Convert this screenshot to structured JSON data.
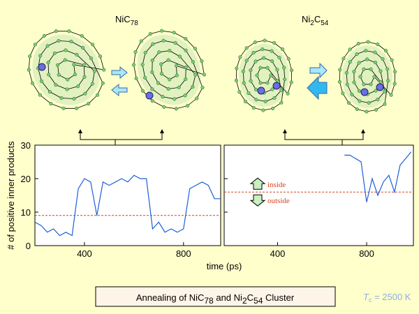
{
  "labels": [
    {
      "text": "NiC",
      "sub": "78"
    },
    {
      "text": "Ni",
      "sub": "2",
      "text2": "C",
      "sub2": "54"
    }
  ],
  "caption": [
    "Annealing of NiC",
    "78",
    " and Ni",
    "2",
    "C",
    "54",
    " Cluster"
  ],
  "temperature": {
    "symbol": "T",
    "sub": "c",
    "text": " = 2500 K"
  },
  "chart_data": [
    {
      "type": "line",
      "xlabel": "time (ps)",
      "ylabel": "# of positive inner products",
      "x": [
        200,
        225,
        250,
        275,
        300,
        325,
        350,
        375,
        400,
        425,
        450,
        475,
        500,
        525,
        550,
        575,
        600,
        625,
        650,
        675,
        700,
        725,
        750,
        775,
        800,
        825,
        850,
        875,
        900,
        925,
        950
      ],
      "series": [
        {
          "color": "#1c5fd8",
          "values": [
            7,
            6,
            4,
            5,
            3,
            4,
            3,
            17,
            20,
            19,
            9,
            19,
            18,
            19,
            20,
            19,
            21,
            20,
            20,
            5,
            7,
            4,
            5,
            4,
            5,
            17,
            18,
            19,
            18,
            14,
            14
          ]
        }
      ],
      "threshold": 9,
      "threshold_color": "#d9401c",
      "xlim": [
        200,
        950
      ],
      "ylim": [
        0,
        30
      ],
      "xticks": [
        400,
        800
      ],
      "yticks": [
        0,
        10,
        20,
        30
      ]
    },
    {
      "type": "line",
      "x": [
        700,
        725,
        750,
        775,
        800,
        825,
        850,
        875,
        900,
        925,
        950,
        975,
        1000
      ],
      "series": [
        {
          "color": "#1c5fd8",
          "values": [
            27,
            27,
            26,
            25,
            13,
            20,
            15,
            19,
            21,
            16,
            24,
            26,
            28
          ]
        }
      ],
      "threshold": 16,
      "threshold_color": "#d9401c",
      "annotations": [
        "inside",
        "outside"
      ],
      "xlim": [
        160,
        1010
      ],
      "ylim": [
        0,
        30
      ],
      "xticks": [
        400,
        800
      ],
      "yticks": [
        0,
        10,
        20,
        30
      ]
    }
  ]
}
